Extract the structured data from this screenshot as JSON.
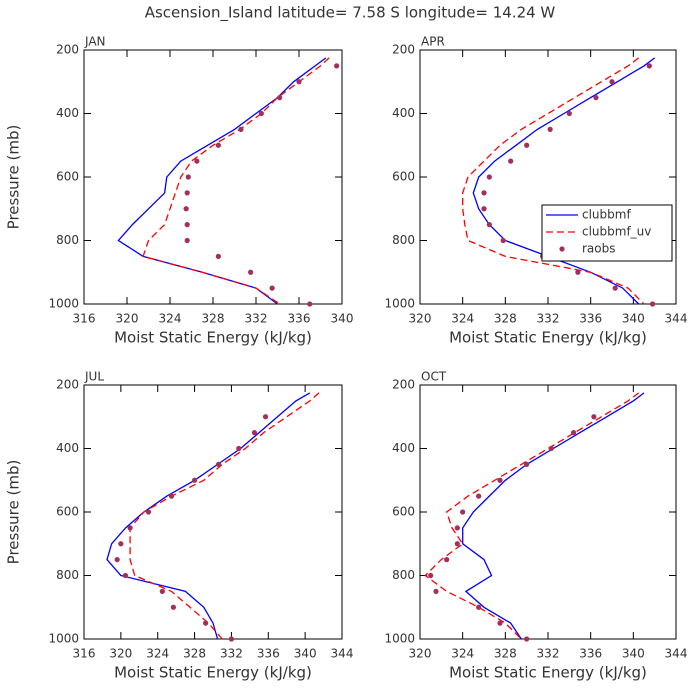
{
  "title": "Ascension_Island  latitude= 7.58 S longitude= 14.24 W",
  "chart_data": [
    {
      "type": "line",
      "title": "JAN",
      "xlabel": "Moist Static Energy (kJ/kg)",
      "ylabel": "Pressure (mb)",
      "xlim": [
        316,
        340
      ],
      "xticks": [
        316,
        320,
        324,
        328,
        332,
        336,
        340
      ],
      "ylim": [
        200,
        1000
      ],
      "yticks": [
        200,
        400,
        600,
        800,
        1000
      ],
      "invert_y": true,
      "levels": [
        225,
        250,
        300,
        350,
        400,
        450,
        500,
        550,
        600,
        650,
        700,
        750,
        800,
        850,
        900,
        950,
        1000
      ],
      "series": [
        {
          "name": "clubbmf",
          "color": "#0000ff",
          "style": "solid",
          "values": [
            338.5,
            337.5,
            335.5,
            334,
            332,
            330,
            327.5,
            325,
            323.7,
            323.5,
            322,
            320.5,
            319.2,
            321.5,
            327,
            332,
            334
          ]
        },
        {
          "name": "clubbmf_uv",
          "color": "#ff0000",
          "style": "dashed",
          "values": [
            338.8,
            338,
            336,
            334,
            332.5,
            330.5,
            328,
            326,
            325,
            324.5,
            324,
            323.5,
            322,
            321.5,
            327,
            332,
            334.2
          ]
        },
        {
          "name": "raobs",
          "color": "#a3305c",
          "style": "dots",
          "values": [
            null,
            339.5,
            336,
            334.2,
            332.5,
            330.6,
            328.5,
            326.5,
            325.7,
            325.6,
            325.5,
            325.6,
            325.6,
            328.5,
            331.5,
            333.5,
            337
          ]
        }
      ]
    },
    {
      "type": "line",
      "title": "APR",
      "xlabel": "Moist Static Energy (kJ/kg)",
      "legend": "right",
      "xlim": [
        320,
        344
      ],
      "xticks": [
        320,
        324,
        328,
        332,
        336,
        340,
        344
      ],
      "ylim": [
        200,
        1000
      ],
      "yticks": [
        200,
        400,
        600,
        800,
        1000
      ],
      "invert_y": true,
      "levels": [
        225,
        250,
        300,
        350,
        400,
        450,
        500,
        550,
        600,
        650,
        700,
        750,
        800,
        850,
        900,
        950,
        1000
      ],
      "series": [
        {
          "name": "clubbmf",
          "color": "#0000ff",
          "style": "solid",
          "values": [
            342,
            341,
            338.5,
            336,
            333.5,
            331,
            329,
            327,
            325.5,
            325,
            325.5,
            326.5,
            328,
            332,
            336,
            339,
            340.5
          ]
        },
        {
          "name": "clubbmf_uv",
          "color": "#ff0000",
          "style": "dashed",
          "values": [
            340.5,
            339.5,
            337,
            334.5,
            332,
            329.5,
            327.5,
            326,
            324.5,
            324,
            324,
            324.2,
            324.5,
            328,
            336,
            339.5,
            341
          ]
        },
        {
          "name": "raobs",
          "color": "#a3305c",
          "style": "dots",
          "values": [
            null,
            341.5,
            338,
            336.5,
            334,
            332.2,
            330,
            328.5,
            326.5,
            326,
            326,
            326.5,
            327.8,
            331.5,
            334.8,
            338.3,
            341.8
          ]
        }
      ]
    },
    {
      "type": "line",
      "title": "JUL",
      "xlabel": "Moist Static Energy (kJ/kg)",
      "ylabel": "Pressure (mb)",
      "xlim": [
        316,
        344
      ],
      "xticks": [
        316,
        320,
        324,
        328,
        332,
        336,
        340,
        344
      ],
      "ylim": [
        200,
        1000
      ],
      "yticks": [
        200,
        400,
        600,
        800,
        1000
      ],
      "invert_y": true,
      "levels": [
        225,
        250,
        300,
        350,
        400,
        450,
        500,
        550,
        600,
        650,
        700,
        750,
        800,
        850,
        900,
        950,
        1000
      ],
      "series": [
        {
          "name": "clubbmf",
          "color": "#0000ff",
          "style": "solid",
          "values": [
            340.5,
            339,
            337,
            335,
            333,
            330.5,
            328,
            325,
            322.5,
            320.5,
            319,
            318.5,
            320,
            327,
            329,
            330,
            330.5
          ]
        },
        {
          "name": "clubbmf_uv",
          "color": "#ff0000",
          "style": "dashed",
          "values": [
            341.5,
            340.5,
            338,
            335.5,
            333.5,
            331,
            329,
            325.5,
            322.5,
            321,
            321,
            321,
            321.5,
            325.5,
            327.5,
            329.5,
            331
          ]
        },
        {
          "name": "raobs",
          "color": "#a3305c",
          "style": "dots",
          "values": [
            null,
            null,
            335.7,
            334.5,
            332.8,
            330.6,
            328,
            325.5,
            323,
            321,
            320,
            319.6,
            320.5,
            324.5,
            325.7,
            329.2,
            332
          ]
        }
      ]
    },
    {
      "type": "line",
      "title": "OCT",
      "xlabel": "Moist Static Energy (kJ/kg)",
      "xlim": [
        320,
        344
      ],
      "xticks": [
        320,
        324,
        328,
        332,
        336,
        340,
        344
      ],
      "ylim": [
        200,
        1000
      ],
      "yticks": [
        200,
        400,
        600,
        800,
        1000
      ],
      "invert_y": true,
      "levels": [
        225,
        250,
        300,
        350,
        400,
        450,
        500,
        550,
        600,
        650,
        700,
        750,
        800,
        850,
        900,
        950,
        1000
      ],
      "series": [
        {
          "name": "clubbmf",
          "color": "#0000ff",
          "style": "solid",
          "values": [
            341,
            340,
            337.5,
            335,
            332.5,
            330,
            328,
            326.5,
            325,
            324,
            324,
            326,
            326.7,
            324.3,
            326,
            328.5,
            329.5
          ]
        },
        {
          "name": "clubbmf_uv",
          "color": "#ff0000",
          "style": "dashed",
          "values": [
            340.5,
            339.5,
            337,
            334.5,
            332,
            329.5,
            327,
            324.5,
            322.5,
            323,
            324,
            322,
            320.5,
            322.5,
            325.5,
            328,
            329.5
          ]
        },
        {
          "name": "raobs",
          "color": "#a3305c",
          "style": "dots",
          "values": [
            null,
            null,
            336.3,
            334.4,
            332.3,
            330,
            327.5,
            325.5,
            324,
            323.5,
            323.5,
            322.5,
            321,
            321.5,
            325.5,
            327.5,
            330
          ]
        }
      ]
    }
  ]
}
